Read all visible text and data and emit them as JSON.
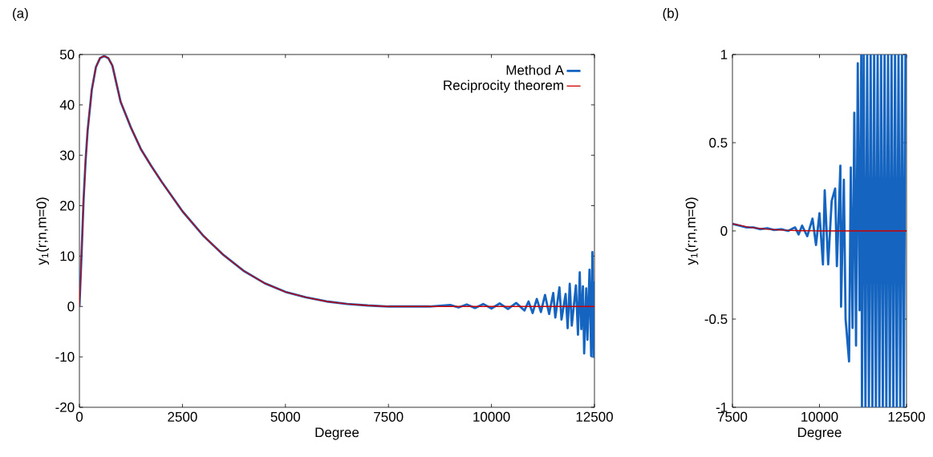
{
  "chart_data": [
    {
      "type": "line",
      "title": "(a)",
      "xlabel": "Degree",
      "ylabel": "y$_{1}$(r;n,m=0)",
      "xlim": [
        0,
        12500
      ],
      "ylim": [
        -20,
        50
      ],
      "xticks": [
        0,
        2500,
        5000,
        7500,
        10000,
        12500
      ],
      "yticks": [
        -20,
        -10,
        0,
        10,
        20,
        30,
        40,
        50
      ],
      "grid": false,
      "legend": "top right",
      "marker": "none",
      "line_style": "solid",
      "series": [
        {
          "name": "Method A",
          "color": "#1565c0",
          "x": [
            0,
            50,
            100,
            150,
            200,
            300,
            400,
            500,
            600,
            700,
            800,
            1000,
            1250,
            1500,
            1750,
            2000,
            2500,
            3000,
            3500,
            4000,
            4500,
            5000,
            5500,
            6000,
            6500,
            7000,
            7500,
            8000,
            8500,
            9000,
            9200,
            9400,
            9600,
            9800,
            10000,
            10200,
            10400,
            10600,
            10800,
            10900,
            11000,
            11100,
            11200,
            11300,
            11400,
            11500,
            11550,
            11650,
            11700,
            11800,
            11850,
            11900,
            11950,
            12050,
            12100,
            12143,
            12180,
            12220,
            12250,
            12300,
            12330,
            12380,
            12420,
            12450,
            12480,
            12500
          ],
          "values": [
            0,
            10,
            21,
            29,
            35,
            43,
            47.5,
            49.3,
            49.7,
            49.3,
            47.8,
            40.6,
            35.5,
            31.1,
            27.8,
            24.7,
            18.9,
            14.1,
            10.2,
            7.0,
            4.6,
            2.9,
            1.8,
            1.0,
            0.5,
            0.2,
            0,
            0,
            0,
            0.3,
            -0.2,
            0.4,
            -0.3,
            0.5,
            -0.4,
            0.6,
            -0.5,
            0.7,
            -0.8,
            1.0,
            -1.3,
            1.5,
            -1.1,
            2.3,
            -1.5,
            2.7,
            -2.2,
            3.8,
            -2.6,
            2.5,
            -4.3,
            4.5,
            -3.8,
            4.2,
            -5.6,
            6.8,
            -4.5,
            4.0,
            -9.3,
            3.6,
            -6.6,
            7.3,
            -9.8,
            10.8,
            -10.0,
            5.0
          ]
        },
        {
          "name": "Reciprocity theorem",
          "color": "#cc0000",
          "x": [
            0,
            50,
            100,
            150,
            200,
            300,
            400,
            500,
            600,
            700,
            800,
            1000,
            1250,
            1500,
            1750,
            2000,
            2500,
            3000,
            3500,
            4000,
            4500,
            5000,
            5500,
            6000,
            6500,
            7000,
            7500,
            8000,
            8500,
            9000,
            10000,
            11000,
            12500
          ],
          "values": [
            0,
            10,
            21,
            29,
            35,
            43,
            47.5,
            49.3,
            49.7,
            49.3,
            47.8,
            40.6,
            35.5,
            31.1,
            27.8,
            24.7,
            18.9,
            14.1,
            10.2,
            7.0,
            4.6,
            2.9,
            1.8,
            1.0,
            0.5,
            0.2,
            0,
            0,
            0,
            0,
            0,
            0,
            0
          ]
        }
      ]
    },
    {
      "type": "line",
      "title": "(b)",
      "xlabel": "Degree",
      "ylabel": "y$_{1}$(r;n,m=0)",
      "xlim": [
        7500,
        12500
      ],
      "ylim": [
        -1,
        1
      ],
      "xticks": [
        7500,
        10000,
        12500
      ],
      "yticks": [
        -1,
        -0.5,
        0,
        0.5,
        1
      ],
      "grid": false,
      "marker": "none",
      "line_style": "solid",
      "series": [
        {
          "color": "#1565c0",
          "x": [
            7500,
            7700,
            7900,
            8100,
            8300,
            8500,
            8700,
            8900,
            9100,
            9300,
            9400,
            9500,
            9650,
            9800,
            9900,
            10000,
            10100,
            10150,
            10250,
            10350,
            10450,
            10500,
            10600,
            10620,
            10700,
            10750,
            10850,
            10900,
            10950,
            11000,
            11050,
            11100,
            11150,
            11200,
            11220,
            11270,
            11320,
            11370,
            11420,
            11470,
            11520,
            11570,
            11620,
            11670,
            11720,
            11770,
            11820,
            11870,
            11920,
            11970,
            12020,
            12070,
            12120,
            12170,
            12220,
            12270,
            12320,
            12370,
            12420,
            12470,
            12500
          ],
          "values": [
            0.04,
            0.03,
            0.02,
            0.02,
            0.01,
            0.015,
            0.005,
            0.01,
            0.0,
            0.02,
            -0.02,
            0.03,
            -0.03,
            0.07,
            -0.08,
            0.1,
            -0.19,
            0.23,
            -0.19,
            0.17,
            0.24,
            -0.2,
            0.37,
            -0.43,
            0.29,
            -0.5,
            -0.74,
            0.36,
            -0.55,
            0.67,
            -0.65,
            0.95,
            -0.45,
            1,
            -1,
            1,
            -1,
            1,
            -1,
            1,
            -1,
            1,
            -1,
            1,
            -1,
            1,
            -1,
            1,
            -1,
            1,
            -1,
            1,
            -1,
            1,
            -1,
            1,
            -1,
            1,
            -1,
            1,
            0.9
          ]
        },
        {
          "color": "#cc0000",
          "x": [
            7500,
            8000,
            8500,
            9000,
            9500,
            10000,
            12500
          ],
          "values": [
            0.04,
            0.02,
            0.01,
            0.004,
            0.001,
            0,
            0
          ]
        }
      ]
    }
  ]
}
